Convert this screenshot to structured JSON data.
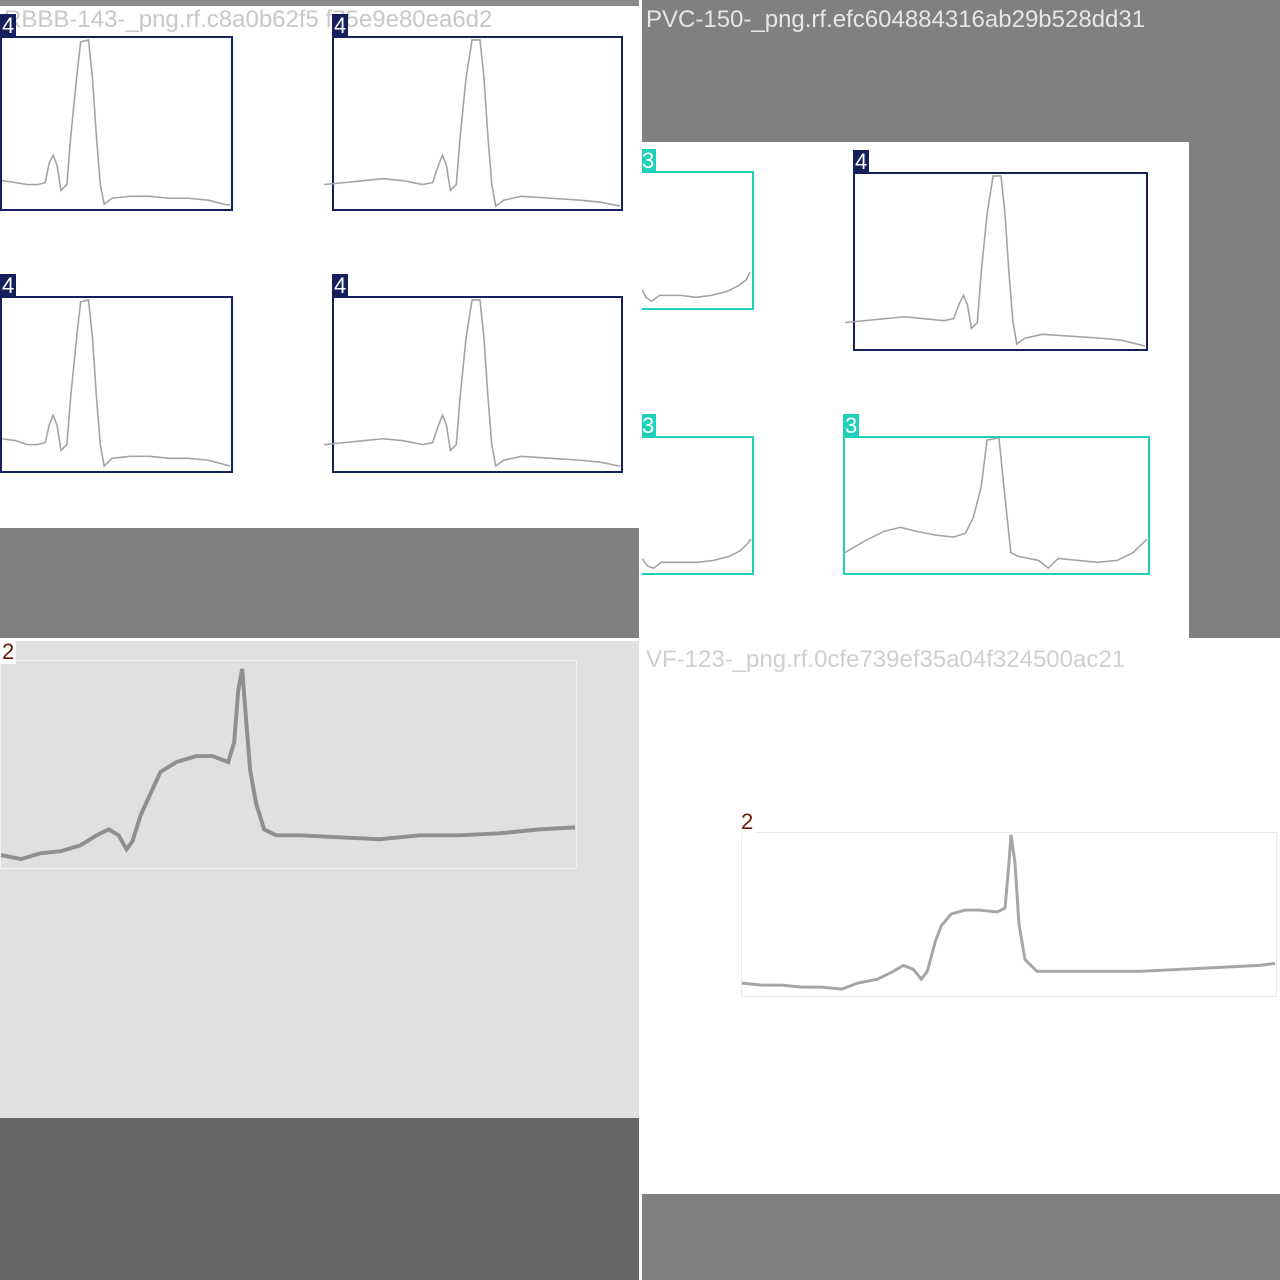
{
  "colors": {
    "class_4": "#141f5c",
    "class_3": "#1ed1b8",
    "class_2": "#6b1a0a",
    "pad_gray": "#7f7f7f",
    "pad_dark": "#666666",
    "tile_bg_light": "#e0e0e0",
    "ecg_stroke": "#9a9a9a"
  },
  "tiles": {
    "top_left": {
      "filename": "RBBB-143-_png.rf.c8a0b62f5 f75e9e80ea6d2",
      "boxes": [
        {
          "label": "4"
        },
        {
          "label": "4"
        },
        {
          "label": "4"
        },
        {
          "label": "4"
        }
      ]
    },
    "top_right": {
      "filename": "PVC-150-_png.rf.efc604884316ab29b528dd31",
      "boxes": [
        {
          "label": "3"
        },
        {
          "label": "4"
        },
        {
          "label": "3"
        },
        {
          "label": "3"
        }
      ]
    },
    "bottom_left": {
      "filename": "",
      "boxes": [
        {
          "label": "2"
        }
      ]
    },
    "bottom_right": {
      "filename": "VF-123-_png.rf.0cfe739ef35a04f324500ac21",
      "boxes": [
        {
          "label": "2"
        }
      ]
    }
  }
}
